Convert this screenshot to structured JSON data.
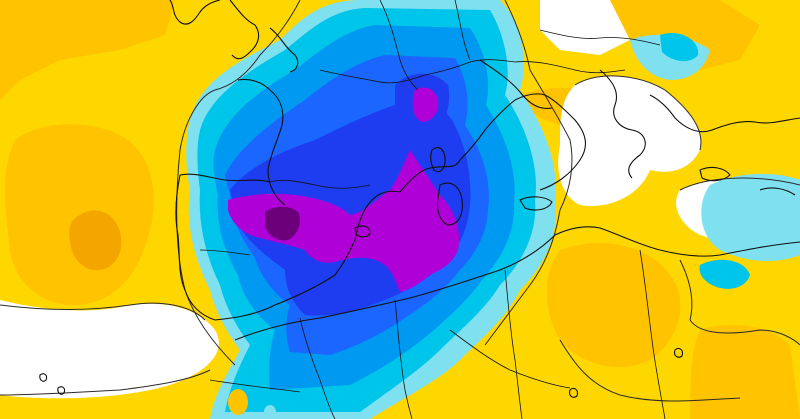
{
  "map": {
    "type": "temperature anomaly field",
    "palette": {
      "background_neutral": "#ffffff",
      "warm_1": "#ffd700",
      "warm_2": "#ffc300",
      "warm_3": "#f3a600",
      "cool_1": "#7fe0ef",
      "cool_2": "#00c5ea",
      "cool_3": "#0099f2",
      "cool_4": "#1a66ff",
      "cool_5": "#1e3cf0",
      "cool_6": "#2a1fd6",
      "extreme_1": "#b000d8",
      "extreme_2": "#6b007a",
      "coast": "#111111",
      "border": "#111111",
      "contour": "#2b2b2b"
    },
    "visible_labels": []
  }
}
